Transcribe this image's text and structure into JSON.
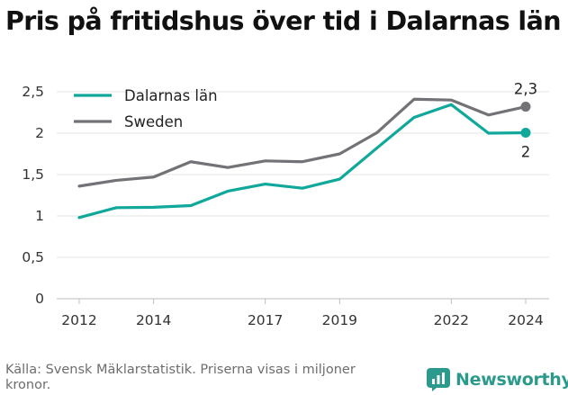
{
  "title": "Pris på fritidshus över tid i Dalarnas län",
  "source": "Källa: Svensk Mäklarstatistik. Priserna visas i miljoner kronor.",
  "brand": "Newsworthy",
  "chart_data": {
    "type": "line",
    "title": "Pris på fritidshus över tid i Dalarnas län",
    "xlabel": "",
    "ylabel": "",
    "x": [
      2012,
      2013,
      2014,
      2015,
      2016,
      2017,
      2018,
      2019,
      2020,
      2021,
      2022,
      2023,
      2024
    ],
    "xticks": [
      2012,
      2014,
      2017,
      2019,
      2022,
      2024
    ],
    "yticks": [
      0,
      0.5,
      1,
      1.5,
      2,
      2.5
    ],
    "ytick_labels": [
      "0",
      "0,5",
      "1",
      "1,5",
      "2",
      "2,5"
    ],
    "ylim": [
      0,
      2.6
    ],
    "grid": "horizontal",
    "legend_position": "top-left",
    "series": [
      {
        "name": "Dalarnas län",
        "color": "#10a89a",
        "values": [
          0.98,
          1.1,
          1.105,
          1.125,
          1.3,
          1.385,
          1.335,
          1.445,
          1.82,
          2.19,
          2.345,
          2.0,
          2.005
        ],
        "end_label": "2"
      },
      {
        "name": "Sweden",
        "color": "#737277",
        "values": [
          1.36,
          1.43,
          1.47,
          1.655,
          1.585,
          1.665,
          1.655,
          1.75,
          2.005,
          2.41,
          2.4,
          2.22,
          2.32
        ],
        "end_label": "2,3"
      }
    ]
  }
}
